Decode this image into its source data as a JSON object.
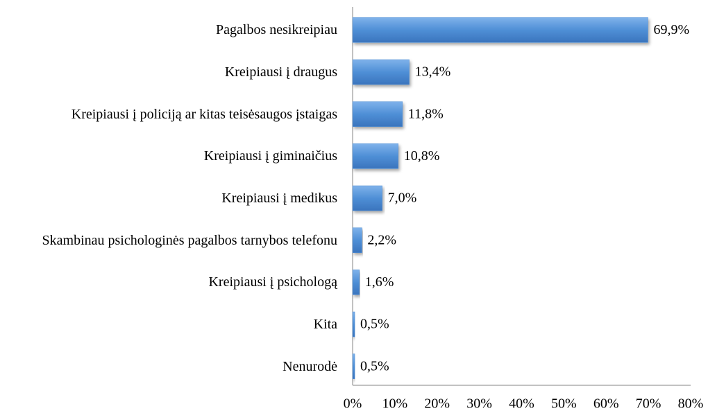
{
  "chart_data": {
    "type": "bar",
    "orientation": "horizontal",
    "categories": [
      "Pagalbos nesikreipiau",
      "Kreipiausi į draugus",
      "Kreipiausi į policiją ar kitas teisėsaugos įstaigas",
      "Kreipiausi į giminaičius",
      "Kreipiausi į medikus",
      "Skambinau psichologinės pagalbos tarnybos telefonu",
      "Kreipiausi į psichologą",
      "Kita",
      "Nenurodė"
    ],
    "values": [
      69.9,
      13.4,
      11.8,
      10.8,
      7.0,
      2.2,
      1.6,
      0.5,
      0.5
    ],
    "value_labels": [
      "69,9%",
      "13,4%",
      "11,8%",
      "10,8%",
      "7,0%",
      "2,2%",
      "1,6%",
      "0,5%",
      "0,5%"
    ],
    "color": "#4f8fd6",
    "xlim": [
      0,
      80
    ],
    "xticks": [
      {
        "value": 0,
        "label": "0%"
      },
      {
        "value": 10,
        "label": "10%"
      },
      {
        "value": 20,
        "label": "20%"
      },
      {
        "value": 30,
        "label": "30%"
      },
      {
        "value": 40,
        "label": "40%"
      },
      {
        "value": 50,
        "label": "50%"
      },
      {
        "value": 60,
        "label": "60%"
      },
      {
        "value": 70,
        "label": "70%"
      },
      {
        "value": 80,
        "label": "80%"
      }
    ],
    "grid": false
  }
}
